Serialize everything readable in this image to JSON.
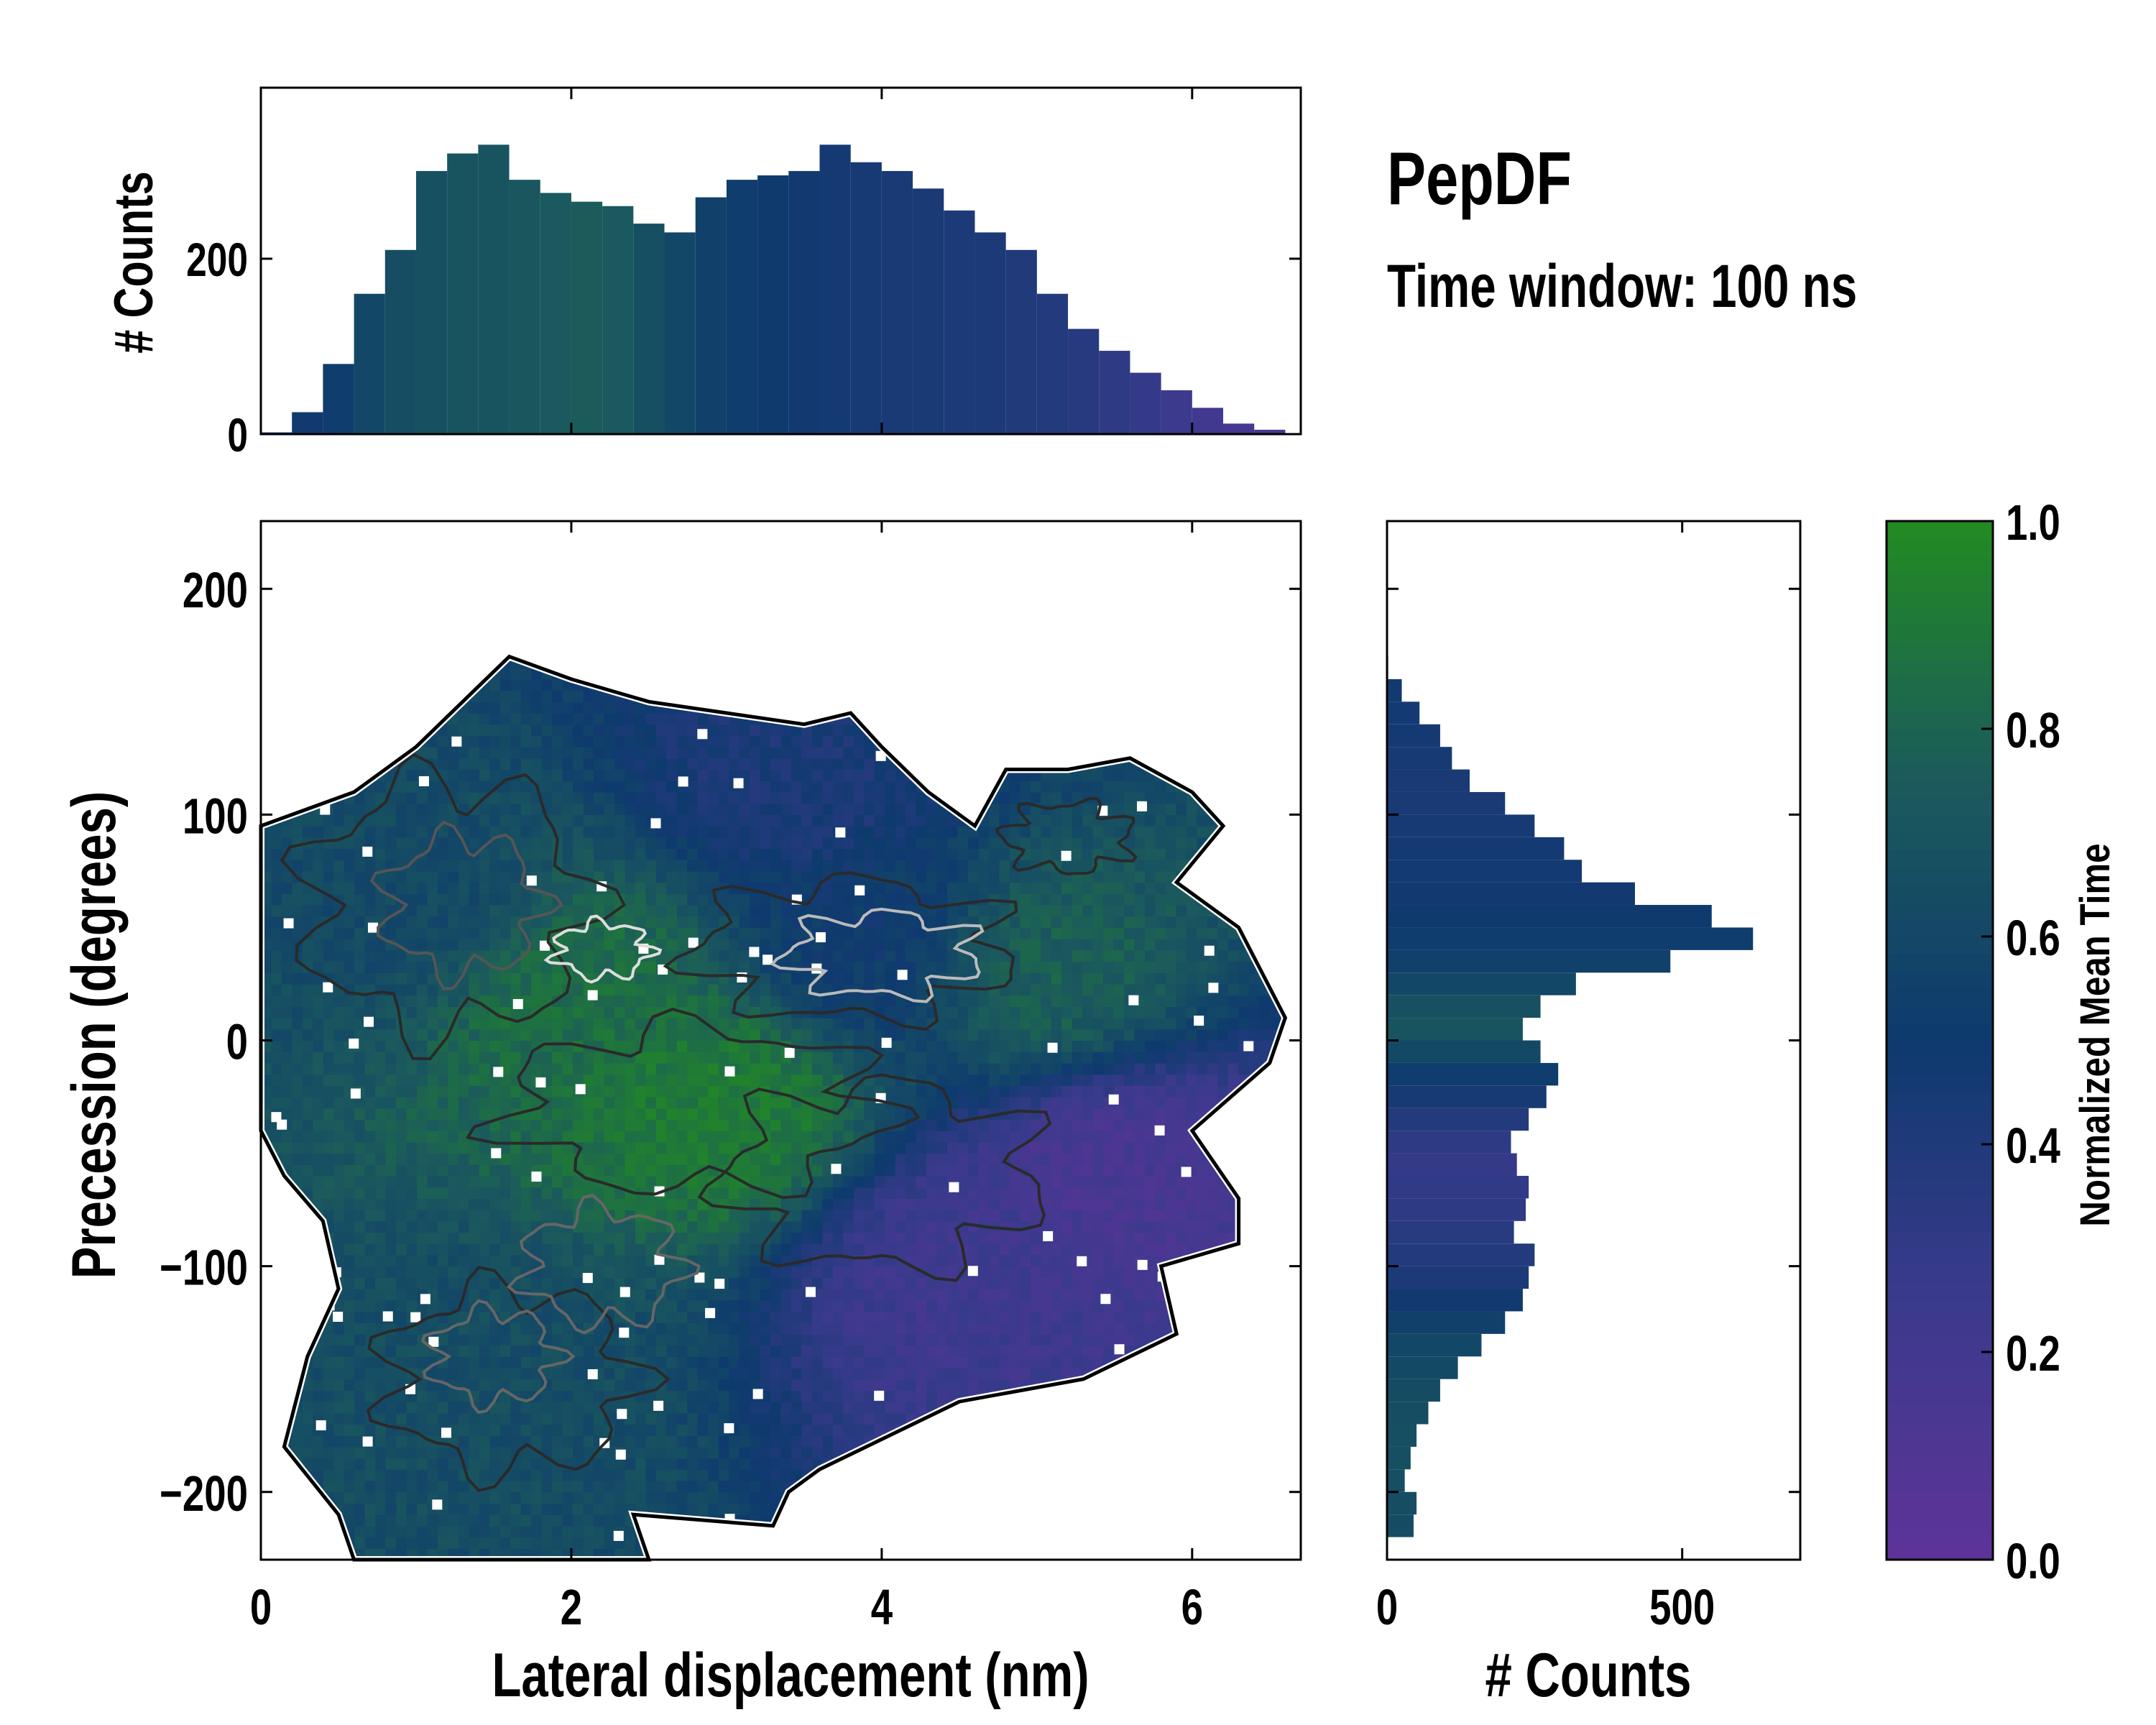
{
  "title": "PepDF",
  "subtitle": "Time window: 100 ns",
  "chart_data": [
    {
      "id": "top-marginal-histogram",
      "type": "bar",
      "ylabel": "# Counts",
      "xlim": [
        0,
        6.7
      ],
      "ylim": [
        0,
        395
      ],
      "yticks": [
        0,
        200
      ],
      "x": [
        0.0,
        0.2,
        0.4,
        0.6,
        0.8,
        1.0,
        1.2,
        1.4,
        1.6,
        1.8,
        2.0,
        2.2,
        2.4,
        2.6,
        2.8,
        3.0,
        3.2,
        3.4,
        3.6,
        3.8,
        4.0,
        4.2,
        4.4,
        4.6,
        4.8,
        5.0,
        5.2,
        5.4,
        5.6,
        5.8,
        6.0,
        6.2,
        6.4,
        6.6
      ],
      "values": [
        2,
        25,
        80,
        160,
        210,
        300,
        320,
        330,
        290,
        275,
        265,
        260,
        240,
        230,
        270,
        290,
        295,
        300,
        330,
        310,
        300,
        280,
        255,
        230,
        210,
        160,
        120,
        95,
        70,
        50,
        30,
        12,
        5,
        1
      ],
      "color_values": [
        0.45,
        0.48,
        0.52,
        0.6,
        0.65,
        0.68,
        0.7,
        0.7,
        0.72,
        0.74,
        0.76,
        0.74,
        0.66,
        0.6,
        0.55,
        0.52,
        0.5,
        0.48,
        0.46,
        0.45,
        0.44,
        0.43,
        0.42,
        0.42,
        0.4,
        0.38,
        0.36,
        0.32,
        0.28,
        0.24,
        0.2,
        0.18,
        0.15,
        0.12
      ]
    },
    {
      "id": "main-2d-histogram",
      "type": "heatmap",
      "xlabel": "Lateral displacement (nm)",
      "ylabel": "Precession (degrees)",
      "xlim": [
        0,
        6.7
      ],
      "ylim": [
        -230,
        230
      ],
      "xticks": [
        0,
        2,
        4,
        6
      ],
      "yticks": [
        -200,
        -100,
        0,
        100,
        200
      ],
      "grid": false,
      "region_samples": [
        {
          "x": 1.0,
          "y": 60,
          "value": 0.62
        },
        {
          "x": 2.0,
          "y": 20,
          "value": 0.85
        },
        {
          "x": 3.0,
          "y": -30,
          "value": 0.92
        },
        {
          "x": 4.0,
          "y": 40,
          "value": 0.5
        },
        {
          "x": 5.0,
          "y": 30,
          "value": 0.78
        },
        {
          "x": 5.5,
          "y": -60,
          "value": 0.15
        },
        {
          "x": 1.5,
          "y": -150,
          "value": 0.65
        },
        {
          "x": 3.5,
          "y": 120,
          "value": 0.42
        },
        {
          "x": 4.5,
          "y": -100,
          "value": 0.22
        }
      ]
    },
    {
      "id": "right-marginal-histogram",
      "type": "bar",
      "orientation": "horizontal",
      "xlabel": "# Counts",
      "xlim": [
        0,
        700
      ],
      "xticks": [
        0,
        500
      ],
      "ylim": [
        -230,
        230
      ],
      "y": [
        160,
        150,
        140,
        130,
        120,
        110,
        100,
        90,
        80,
        70,
        60,
        50,
        40,
        30,
        20,
        10,
        0,
        -10,
        -20,
        -30,
        -40,
        -50,
        -60,
        -70,
        -80,
        -90,
        -100,
        -110,
        -120,
        -130,
        -140,
        -150,
        -160,
        -170,
        -180,
        -190,
        -200,
        -210,
        -220
      ],
      "values": [
        2,
        25,
        55,
        90,
        110,
        140,
        200,
        250,
        300,
        330,
        420,
        550,
        620,
        480,
        320,
        260,
        230,
        260,
        290,
        270,
        240,
        210,
        220,
        240,
        235,
        215,
        250,
        240,
        230,
        200,
        160,
        120,
        90,
        70,
        50,
        40,
        30,
        50,
        45
      ],
      "color_values": [
        0.5,
        0.48,
        0.47,
        0.46,
        0.45,
        0.44,
        0.44,
        0.45,
        0.46,
        0.47,
        0.48,
        0.5,
        0.52,
        0.55,
        0.6,
        0.68,
        0.7,
        0.62,
        0.52,
        0.45,
        0.38,
        0.32,
        0.28,
        0.3,
        0.32,
        0.35,
        0.38,
        0.42,
        0.48,
        0.55,
        0.6,
        0.62,
        0.64,
        0.65,
        0.66,
        0.66,
        0.66,
        0.65,
        0.64
      ]
    },
    {
      "id": "colorbar",
      "type": "colorbar",
      "label": "Normalized Mean Time",
      "range": [
        0.0,
        1.0
      ],
      "ticks": [
        "0.0",
        "0.2",
        "0.4",
        "0.6",
        "0.8",
        "1.0"
      ],
      "colors": [
        "#5e3399",
        "#3a3a8c",
        "#0e3a6e",
        "#1b5a5c",
        "#228b22"
      ]
    }
  ],
  "labels": {
    "top_ylabel": "# Counts",
    "main_xlabel": "Lateral displacement (nm)",
    "main_ylabel": "Precession (degrees)",
    "right_xlabel": "# Counts",
    "colorbar_label": "Normalized Mean Time"
  }
}
